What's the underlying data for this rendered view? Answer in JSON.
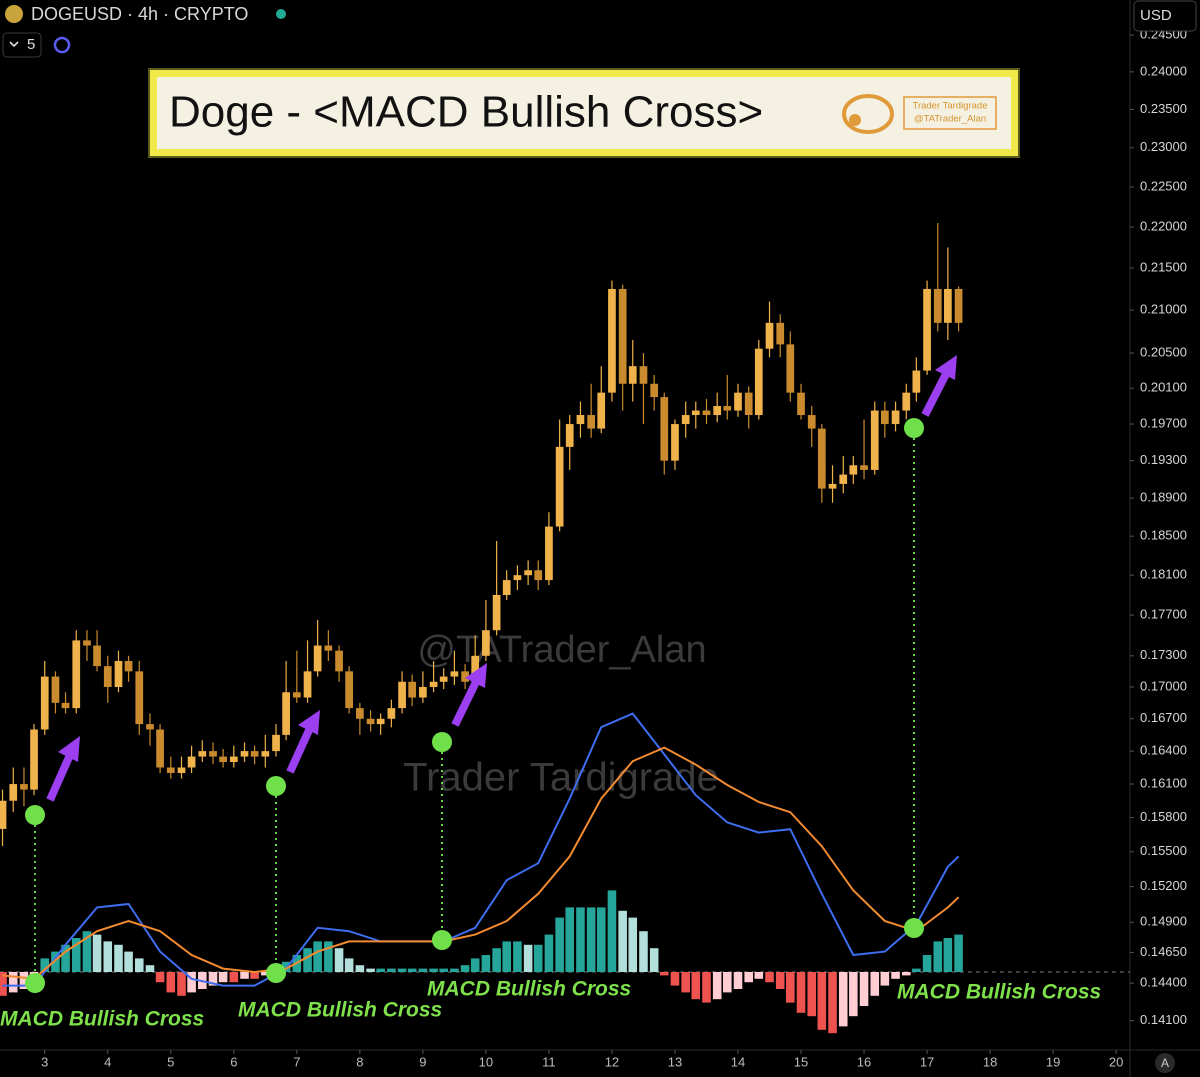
{
  "header": {
    "symbol": "DOGEUSD · 4h · CRYPTO",
    "interval_count": "5",
    "currency": "USD",
    "auto": "A"
  },
  "banner": {
    "title": "Doge - <MACD Bullish Cross>",
    "author": "Trader Tardigrade",
    "handle": "@TATrader_Alan"
  },
  "watermarks": [
    "@TATrader_Alan",
    "Trader Tardigrade"
  ],
  "annotations": [
    "MACD Bullish Cross",
    "MACD Bullish Cross",
    "MACD Bullish Cross",
    "MACD Bullish Cross"
  ],
  "chart_data": {
    "type": "candlestick",
    "log_scale": true,
    "grid": false,
    "up_color": "#f0b24a",
    "down_color": "#c98b2e",
    "xlim": [
      2.29,
      20.22
    ],
    "xticks": [
      3,
      4,
      5,
      6,
      7,
      8,
      9,
      10,
      11,
      12,
      13,
      14,
      15,
      16,
      17,
      18,
      19,
      20
    ],
    "ylim": [
      0.1387,
      0.2457
    ],
    "yticks": [
      {
        "value": 0.141,
        "label": "0.14100"
      },
      {
        "value": 0.144,
        "label": "0.14400"
      },
      {
        "value": 0.1465,
        "label": "0.14650"
      },
      {
        "value": 0.149,
        "label": "0.14900"
      },
      {
        "value": 0.152,
        "label": "0.15200"
      },
      {
        "value": 0.155,
        "label": "0.15500"
      },
      {
        "value": 0.158,
        "label": "0.15800"
      },
      {
        "value": 0.161,
        "label": "0.16100"
      },
      {
        "value": 0.164,
        "label": "0.16400"
      },
      {
        "value": 0.167,
        "label": "0.16700"
      },
      {
        "value": 0.17,
        "label": "0.17000"
      },
      {
        "value": 0.173,
        "label": "0.17300"
      },
      {
        "value": 0.177,
        "label": "0.17700"
      },
      {
        "value": 0.181,
        "label": "0.18100"
      },
      {
        "value": 0.185,
        "label": "0.18500"
      },
      {
        "value": 0.189,
        "label": "0.18900"
      },
      {
        "value": 0.193,
        "label": "0.19300"
      },
      {
        "value": 0.197,
        "label": "0.19700"
      },
      {
        "value": 0.201,
        "label": "0.20100"
      },
      {
        "value": 0.205,
        "label": "0.20500"
      },
      {
        "value": 0.21,
        "label": "0.21000"
      },
      {
        "value": 0.215,
        "label": "0.21500"
      },
      {
        "value": 0.22,
        "label": "0.22000"
      },
      {
        "value": 0.225,
        "label": "0.22500"
      },
      {
        "value": 0.23,
        "label": "0.23000"
      },
      {
        "value": 0.235,
        "label": "0.23500"
      },
      {
        "value": 0.24,
        "label": "0.24000"
      },
      {
        "value": 0.245,
        "label": "0.24500"
      }
    ],
    "x": [
      2.33,
      2.5,
      2.67,
      2.83,
      3,
      3.17,
      3.33,
      3.5,
      3.67,
      3.83,
      4,
      4.17,
      4.33,
      4.5,
      4.67,
      4.83,
      5,
      5.17,
      5.33,
      5.5,
      5.67,
      5.83,
      6,
      6.17,
      6.33,
      6.5,
      6.67,
      6.83,
      7,
      7.17,
      7.33,
      7.5,
      7.67,
      7.83,
      8,
      8.17,
      8.33,
      8.5,
      8.67,
      8.83,
      9,
      9.17,
      9.33,
      9.5,
      9.67,
      9.83,
      10,
      10.17,
      10.33,
      10.5,
      10.67,
      10.83,
      11,
      11.17,
      11.33,
      11.5,
      11.67,
      11.83,
      12,
      12.17,
      12.33,
      12.5,
      12.67,
      12.83,
      13,
      13.17,
      13.33,
      13.5,
      13.67,
      13.83,
      14,
      14.17,
      14.33,
      14.5,
      14.67,
      14.83,
      15,
      15.17,
      15.33,
      15.5,
      15.67,
      15.83,
      16,
      16.17,
      16.33,
      16.5,
      16.67,
      16.83,
      17,
      17.17,
      17.33,
      17.5
    ],
    "ohlc": [
      [
        0.157,
        0.1605,
        0.1555,
        0.1595
      ],
      [
        0.1595,
        0.1625,
        0.1585,
        0.161
      ],
      [
        0.161,
        0.1625,
        0.159,
        0.1605
      ],
      [
        0.1605,
        0.1665,
        0.16,
        0.166
      ],
      [
        0.166,
        0.1725,
        0.1655,
        0.171
      ],
      [
        0.171,
        0.1715,
        0.1675,
        0.1685
      ],
      [
        0.1685,
        0.1695,
        0.1675,
        0.168
      ],
      [
        0.168,
        0.1755,
        0.1675,
        0.1745
      ],
      [
        0.1745,
        0.1755,
        0.1725,
        0.174
      ],
      [
        0.174,
        0.1755,
        0.1715,
        0.172
      ],
      [
        0.172,
        0.173,
        0.1685,
        0.17
      ],
      [
        0.17,
        0.1735,
        0.1695,
        0.1725
      ],
      [
        0.1725,
        0.173,
        0.1705,
        0.1715
      ],
      [
        0.1715,
        0.1725,
        0.1655,
        0.1665
      ],
      [
        0.1665,
        0.1675,
        0.1645,
        0.166
      ],
      [
        0.166,
        0.1665,
        0.162,
        0.1625
      ],
      [
        0.1625,
        0.1635,
        0.1615,
        0.162
      ],
      [
        0.162,
        0.1635,
        0.1615,
        0.1625
      ],
      [
        0.1625,
        0.1645,
        0.162,
        0.1635
      ],
      [
        0.1635,
        0.165,
        0.163,
        0.164
      ],
      [
        0.164,
        0.1648,
        0.1628,
        0.1635
      ],
      [
        0.1635,
        0.1642,
        0.1625,
        0.163
      ],
      [
        0.163,
        0.1645,
        0.1625,
        0.1635
      ],
      [
        0.1635,
        0.1648,
        0.163,
        0.164
      ],
      [
        0.164,
        0.1645,
        0.1628,
        0.1635
      ],
      [
        0.1635,
        0.1655,
        0.1625,
        0.164
      ],
      [
        0.164,
        0.1665,
        0.1635,
        0.1655
      ],
      [
        0.1655,
        0.1725,
        0.165,
        0.1695
      ],
      [
        0.1695,
        0.1735,
        0.1685,
        0.169
      ],
      [
        0.169,
        0.1745,
        0.1685,
        0.1715
      ],
      [
        0.1715,
        0.1765,
        0.171,
        0.174
      ],
      [
        0.174,
        0.1755,
        0.1725,
        0.1735
      ],
      [
        0.1735,
        0.174,
        0.1705,
        0.1715
      ],
      [
        0.1715,
        0.172,
        0.1675,
        0.168
      ],
      [
        0.168,
        0.1685,
        0.1655,
        0.167
      ],
      [
        0.167,
        0.1678,
        0.1658,
        0.1665
      ],
      [
        0.1665,
        0.1675,
        0.1655,
        0.167
      ],
      [
        0.167,
        0.1688,
        0.1662,
        0.168
      ],
      [
        0.168,
        0.1715,
        0.1675,
        0.1705
      ],
      [
        0.1705,
        0.1712,
        0.1682,
        0.169
      ],
      [
        0.169,
        0.1715,
        0.1685,
        0.17
      ],
      [
        0.17,
        0.1725,
        0.1695,
        0.1705
      ],
      [
        0.1705,
        0.1718,
        0.1698,
        0.171
      ],
      [
        0.171,
        0.1735,
        0.1702,
        0.1715
      ],
      [
        0.1715,
        0.1722,
        0.1698,
        0.1705
      ],
      [
        0.1705,
        0.175,
        0.17,
        0.173
      ],
      [
        0.173,
        0.1785,
        0.1725,
        0.1755
      ],
      [
        0.1755,
        0.1845,
        0.175,
        0.179
      ],
      [
        0.179,
        0.1815,
        0.1785,
        0.1805
      ],
      [
        0.1805,
        0.182,
        0.1795,
        0.181
      ],
      [
        0.181,
        0.1825,
        0.18,
        0.1815
      ],
      [
        0.1815,
        0.1825,
        0.1795,
        0.1805
      ],
      [
        0.1805,
        0.1875,
        0.18,
        0.186
      ],
      [
        0.186,
        0.1975,
        0.1855,
        0.1945
      ],
      [
        0.1945,
        0.198,
        0.192,
        0.197
      ],
      [
        0.197,
        0.1995,
        0.1955,
        0.198
      ],
      [
        0.198,
        0.2015,
        0.1955,
        0.1965
      ],
      [
        0.1965,
        0.2035,
        0.196,
        0.2005
      ],
      [
        0.2005,
        0.2135,
        0.1995,
        0.2125
      ],
      [
        0.2125,
        0.213,
        0.1985,
        0.2015
      ],
      [
        0.2015,
        0.2065,
        0.1995,
        0.2035
      ],
      [
        0.2035,
        0.205,
        0.197,
        0.2015
      ],
      [
        0.2015,
        0.2025,
        0.1985,
        0.2
      ],
      [
        0.2,
        0.2005,
        0.1915,
        0.193
      ],
      [
        0.193,
        0.1975,
        0.192,
        0.197
      ],
      [
        0.197,
        0.1995,
        0.1955,
        0.198
      ],
      [
        0.198,
        0.1995,
        0.1965,
        0.1985
      ],
      [
        0.1985,
        0.1998,
        0.197,
        0.198
      ],
      [
        0.198,
        0.2005,
        0.1972,
        0.199
      ],
      [
        0.199,
        0.2025,
        0.1975,
        0.1985
      ],
      [
        0.1985,
        0.2015,
        0.1978,
        0.2005
      ],
      [
        0.2005,
        0.2012,
        0.1965,
        0.198
      ],
      [
        0.198,
        0.2065,
        0.1975,
        0.2055
      ],
      [
        0.2055,
        0.211,
        0.2045,
        0.2085
      ],
      [
        0.2085,
        0.2095,
        0.2045,
        0.206
      ],
      [
        0.206,
        0.2075,
        0.1995,
        0.2005
      ],
      [
        0.2005,
        0.2015,
        0.1975,
        0.198
      ],
      [
        0.198,
        0.199,
        0.1945,
        0.1965
      ],
      [
        0.1965,
        0.197,
        0.1885,
        0.19
      ],
      [
        0.19,
        0.1925,
        0.1885,
        0.1905
      ],
      [
        0.1905,
        0.1935,
        0.1895,
        0.1915
      ],
      [
        0.1915,
        0.1935,
        0.1905,
        0.1925
      ],
      [
        0.1925,
        0.1975,
        0.191,
        0.192
      ],
      [
        0.192,
        0.1995,
        0.1915,
        0.1985
      ],
      [
        0.1985,
        0.1995,
        0.1955,
        0.197
      ],
      [
        0.197,
        0.1995,
        0.1962,
        0.1985
      ],
      [
        0.1985,
        0.2015,
        0.1975,
        0.2005
      ],
      [
        0.2005,
        0.2045,
        0.1995,
        0.203
      ],
      [
        0.203,
        0.2135,
        0.2025,
        0.2125
      ],
      [
        0.2125,
        0.2205,
        0.2075,
        0.2085
      ],
      [
        0.2085,
        0.2175,
        0.2065,
        0.2125
      ],
      [
        0.2125,
        0.2128,
        0.2075,
        0.2085
      ]
    ],
    "macd": {
      "ylim": [
        -0.002,
        0.008
      ],
      "x": [
        2.33,
        2.83,
        3.33,
        3.83,
        4.33,
        4.83,
        5.33,
        5.83,
        6.33,
        6.83,
        7.33,
        7.83,
        8.33,
        8.83,
        9.33,
        9.83,
        10.33,
        10.83,
        11.33,
        11.83,
        12.33,
        12.83,
        13.33,
        13.83,
        14.33,
        14.83,
        15.33,
        15.83,
        16.33,
        16.83,
        17.33,
        17.5
      ],
      "series": [
        {
          "color": "#3f6df0",
          "values": [
            -0.0004,
            -0.0004,
            0.0008,
            0.0019,
            0.002,
            0.0006,
            -0.0002,
            -0.0004,
            -0.0004,
            0.0001,
            0.0013,
            0.0012,
            0.0009,
            0.0009,
            0.0009,
            0.0013,
            0.0027,
            0.0032,
            0.0051,
            0.0072,
            0.0076,
            0.0064,
            0.0052,
            0.0044,
            0.0041,
            0.0042,
            0.0023,
            0.0005,
            0.0006,
            0.0014,
            0.0031,
            0.0034
          ]
        },
        {
          "color": "#f28a30",
          "values": [
            -0.0001,
            -0.0002,
            0.0006,
            0.0012,
            0.0015,
            0.0012,
            0.0005,
            0.0001,
            0,
            0.0001,
            0.0006,
            0.0009,
            0.0009,
            0.0009,
            0.0009,
            0.0011,
            0.0015,
            0.0023,
            0.0034,
            0.0051,
            0.0062,
            0.0066,
            0.0061,
            0.0055,
            0.005,
            0.0047,
            0.0037,
            0.0024,
            0.0015,
            0.0012,
            0.0019,
            0.0022
          ]
        }
      ],
      "histogram": [
        -0.0007,
        -0.0006,
        -0.0005,
        -0.0002,
        0.0004,
        0.0006,
        0.0008,
        0.001,
        0.0012,
        0.0011,
        0.0009,
        0.0008,
        0.0006,
        0.0004,
        0.0002,
        -0.0003,
        -0.0006,
        -0.0007,
        -0.0006,
        -0.0005,
        -0.0004,
        -0.0003,
        -0.0003,
        -0.0002,
        -0.0002,
        -0.0001,
        0.0001,
        0.0003,
        0.0005,
        0.0007,
        0.0009,
        0.0009,
        0.0007,
        0.0004,
        0.0002,
        0.0001,
        0.0001,
        0.0001,
        0.0001,
        0.0001,
        0.0001,
        0.0001,
        0.0001,
        0.0001,
        0.0002,
        0.0004,
        0.0005,
        0.0007,
        0.0009,
        0.0009,
        0.0008,
        0.0008,
        0.0011,
        0.0016,
        0.0019,
        0.0019,
        0.0019,
        0.0019,
        0.0024,
        0.0018,
        0.0016,
        0.0012,
        0.0007,
        -0.0001,
        -0.0004,
        -0.0006,
        -0.0008,
        -0.0009,
        -0.0008,
        -0.0006,
        -0.0005,
        -0.0003,
        -0.0002,
        -0.0003,
        -0.0005,
        -0.0009,
        -0.0012,
        -0.0013,
        -0.0017,
        -0.0018,
        -0.0016,
        -0.0013,
        -0.001,
        -0.0007,
        -0.0004,
        -0.0002,
        -0.0001,
        0.0001,
        0.0005,
        0.0009,
        0.001,
        0.0011
      ],
      "hist_colors": [
        "#26a69a",
        "#b2dfdb",
        "#ef5350",
        "#ffcdd2"
      ]
    }
  }
}
